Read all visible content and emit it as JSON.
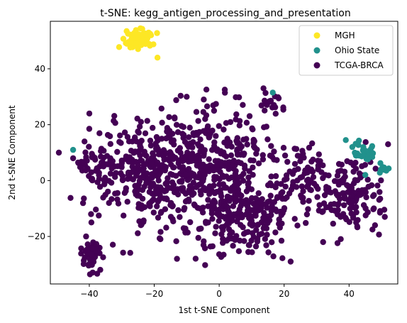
{
  "chart_data": {
    "type": "scatter",
    "title": "t-SNE: kegg_antigen_processing_and_presentation",
    "xlabel": "1st t-SNE Component",
    "ylabel": "2nd t-SNE Component",
    "xlim": [
      -52,
      55
    ],
    "ylim": [
      -37,
      57
    ],
    "xticks": [
      -40,
      -20,
      0,
      20,
      40
    ],
    "yticks": [
      -20,
      0,
      20,
      40
    ],
    "xtick_labels": [
      "−40",
      "−20",
      "0",
      "20",
      "40"
    ],
    "ytick_labels": [
      "−20",
      "0",
      "20",
      "40"
    ],
    "grid": false,
    "legend_position": "top-right",
    "series": [
      {
        "name": "MGH",
        "color": "#fde725",
        "clusters": [
          {
            "cx": -25,
            "cy": 51,
            "sx": 2.2,
            "sy": 1.6,
            "n": 60
          }
        ],
        "points": [
          [
            -28.5,
            53.5
          ],
          [
            -24,
            48.5
          ],
          [
            -19,
            44
          ],
          [
            -21,
            52
          ]
        ]
      },
      {
        "name": "Ohio State",
        "color": "#21918c",
        "clusters": [
          {
            "cx": 44,
            "cy": 10.5,
            "sx": 2.0,
            "sy": 1.6,
            "n": 28
          },
          {
            "cx": 50,
            "cy": 4.5,
            "sx": 1.2,
            "sy": 0.9,
            "n": 10
          }
        ],
        "points": [
          [
            -45,
            11
          ],
          [
            16.5,
            31.5
          ],
          [
            45,
            2
          ],
          [
            39,
            14.5
          ],
          [
            41,
            12
          ]
        ]
      },
      {
        "name": "TCGA-BRCA",
        "color": "#440154",
        "clusters": [
          {
            "cx": -22,
            "cy": 2,
            "sx": 9,
            "sy": 9,
            "n": 320
          },
          {
            "cx": -3,
            "cy": 10,
            "sx": 9,
            "sy": 9,
            "n": 300
          },
          {
            "cx": 6,
            "cy": -12,
            "sx": 9,
            "sy": 8,
            "n": 260
          },
          {
            "cx": -38,
            "cy": 5,
            "sx": 4,
            "sy": 3.5,
            "n": 40
          },
          {
            "cx": 40,
            "cy": -5,
            "sx": 5.5,
            "sy": 6,
            "n": 150
          },
          {
            "cx": -39,
            "cy": -27,
            "sx": 1.6,
            "sy": 3,
            "n": 45
          },
          {
            "cx": 16,
            "cy": 28,
            "sx": 1.8,
            "sy": 1.4,
            "n": 20
          },
          {
            "cx": 25,
            "cy": 2,
            "sx": 4,
            "sy": 5,
            "n": 60
          }
        ],
        "points": [
          [
            -41,
            -20
          ],
          [
            -40,
            24
          ],
          [
            -10,
            30
          ],
          [
            22,
            -29
          ],
          [
            52,
            13
          ],
          [
            51,
            -13
          ],
          [
            32,
            -22
          ],
          [
            48,
            -16
          ],
          [
            -13,
            -28
          ],
          [
            -45,
            8
          ]
        ]
      }
    ]
  }
}
